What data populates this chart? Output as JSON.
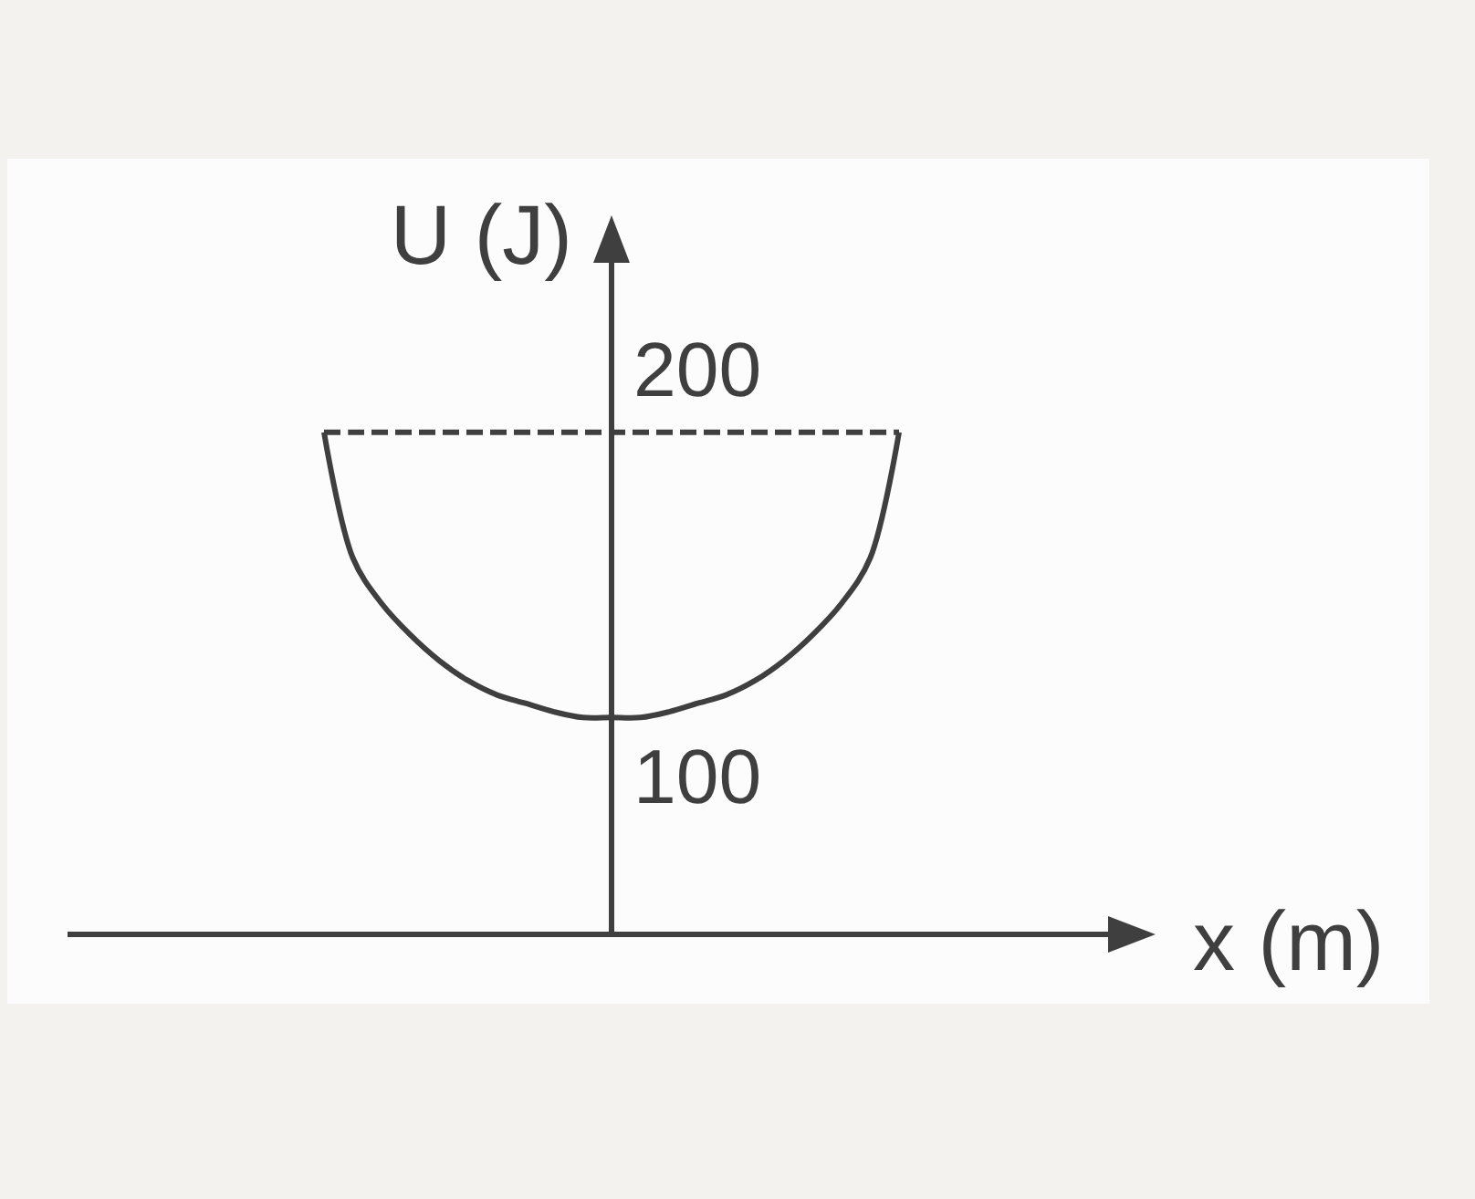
{
  "chart_data": {
    "type": "line",
    "xlabel": "x (m)",
    "ylabel": "U (J)",
    "categories": [
      null,
      null,
      null,
      null,
      null,
      null,
      null,
      null,
      null,
      null,
      null,
      null,
      null,
      null,
      null,
      null,
      null,
      null,
      null,
      null,
      null
    ],
    "series": [
      {
        "color": "#3f3f3f",
        "values": [
          200,
          156,
          140,
          129,
          120,
          113,
          108,
          105,
          102,
          100,
          100,
          100,
          102,
          105,
          108,
          113,
          120,
          129,
          140,
          156,
          200
        ],
        "value_labels": [
          null,
          null,
          null,
          null,
          null,
          null,
          null,
          null,
          null,
          null,
          "100",
          null,
          null,
          null,
          null,
          null,
          null,
          null,
          null,
          null,
          null
        ]
      },
      {
        "color": "#3f3f3f",
        "line_style": "dashed",
        "values": [
          200,
          200,
          200,
          200,
          200,
          200,
          200,
          200,
          200,
          200,
          200,
          200,
          200,
          200,
          200,
          200,
          200,
          200,
          200,
          200,
          200
        ],
        "value_labels": [
          null,
          null,
          null,
          null,
          null,
          null,
          null,
          null,
          null,
          null,
          "200",
          null,
          null,
          null,
          null,
          null,
          null,
          null,
          null,
          null,
          null
        ]
      }
    ],
    "tick_labels": false
  }
}
